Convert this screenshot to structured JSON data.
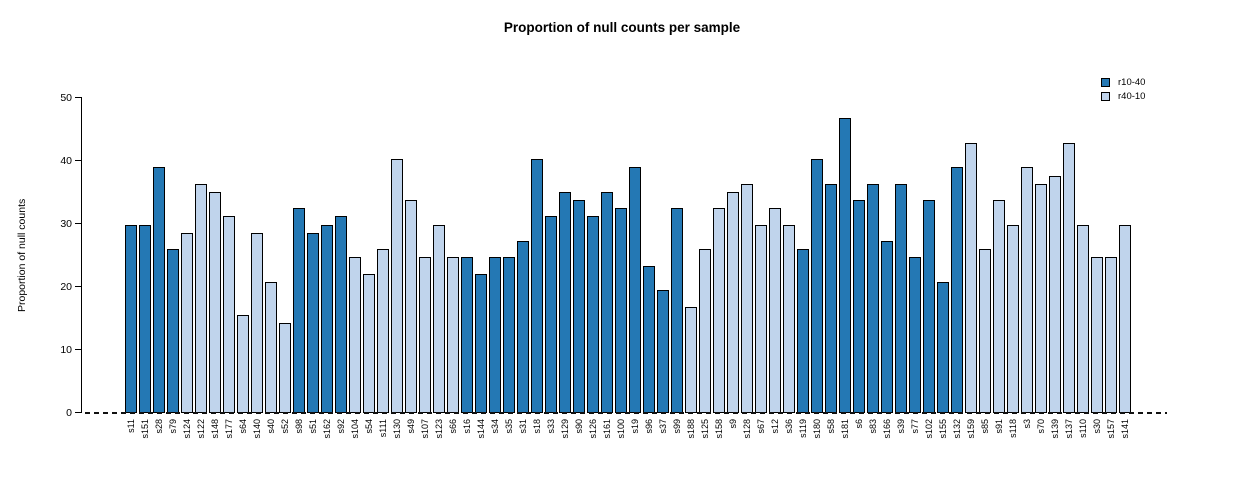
{
  "chart_data": {
    "type": "bar",
    "title": "Proportion of null counts per sample",
    "xlabel": "",
    "ylabel": "Proportion of null counts",
    "ylim": [
      0,
      50
    ],
    "y_ticks": [
      0,
      10,
      20,
      30,
      40,
      50
    ],
    "grid": false,
    "zero_line_style": "dashed",
    "legend_position": "top-right",
    "series": [
      {
        "name": "r10-40",
        "color": "#2478b4"
      },
      {
        "name": "r40-10",
        "color": "#c0d4ec"
      }
    ],
    "bar_border_color": "#000000",
    "bars": [
      {
        "label": "s11",
        "value": 29.9,
        "series": "r10-40"
      },
      {
        "label": "s151",
        "value": 29.9,
        "series": "r10-40"
      },
      {
        "label": "s28",
        "value": 39.0,
        "series": "r10-40"
      },
      {
        "label": "s79",
        "value": 26.0,
        "series": "r10-40"
      },
      {
        "label": "s124",
        "value": 28.6,
        "series": "r40-10"
      },
      {
        "label": "s122",
        "value": 36.4,
        "series": "r40-10"
      },
      {
        "label": "s148",
        "value": 35.1,
        "series": "r40-10"
      },
      {
        "label": "s177",
        "value": 31.2,
        "series": "r40-10"
      },
      {
        "label": "s64",
        "value": 15.6,
        "series": "r40-10"
      },
      {
        "label": "s140",
        "value": 28.6,
        "series": "r40-10"
      },
      {
        "label": "s40",
        "value": 20.8,
        "series": "r40-10"
      },
      {
        "label": "s52",
        "value": 14.3,
        "series": "r40-10"
      },
      {
        "label": "s98",
        "value": 32.5,
        "series": "r10-40"
      },
      {
        "label": "s51",
        "value": 28.6,
        "series": "r10-40"
      },
      {
        "label": "s162",
        "value": 29.9,
        "series": "r10-40"
      },
      {
        "label": "s92",
        "value": 31.2,
        "series": "r10-40"
      },
      {
        "label": "s104",
        "value": 24.7,
        "series": "r40-10"
      },
      {
        "label": "s54",
        "value": 22.1,
        "series": "r40-10"
      },
      {
        "label": "s111",
        "value": 26.0,
        "series": "r40-10"
      },
      {
        "label": "s130",
        "value": 40.3,
        "series": "r40-10"
      },
      {
        "label": "s49",
        "value": 33.8,
        "series": "r40-10"
      },
      {
        "label": "s107",
        "value": 24.7,
        "series": "r40-10"
      },
      {
        "label": "s123",
        "value": 29.9,
        "series": "r40-10"
      },
      {
        "label": "s66",
        "value": 24.7,
        "series": "r40-10"
      },
      {
        "label": "s16",
        "value": 24.7,
        "series": "r10-40"
      },
      {
        "label": "s144",
        "value": 22.1,
        "series": "r10-40"
      },
      {
        "label": "s34",
        "value": 24.7,
        "series": "r10-40"
      },
      {
        "label": "s35",
        "value": 24.7,
        "series": "r10-40"
      },
      {
        "label": "s31",
        "value": 27.3,
        "series": "r10-40"
      },
      {
        "label": "s18",
        "value": 40.3,
        "series": "r10-40"
      },
      {
        "label": "s33",
        "value": 31.2,
        "series": "r10-40"
      },
      {
        "label": "s129",
        "value": 35.1,
        "series": "r10-40"
      },
      {
        "label": "s90",
        "value": 33.8,
        "series": "r10-40"
      },
      {
        "label": "s126",
        "value": 31.2,
        "series": "r10-40"
      },
      {
        "label": "s161",
        "value": 35.1,
        "series": "r10-40"
      },
      {
        "label": "s100",
        "value": 32.5,
        "series": "r10-40"
      },
      {
        "label": "s19",
        "value": 39.0,
        "series": "r10-40"
      },
      {
        "label": "s96",
        "value": 23.4,
        "series": "r10-40"
      },
      {
        "label": "s37",
        "value": 19.5,
        "series": "r10-40"
      },
      {
        "label": "s99",
        "value": 32.5,
        "series": "r10-40"
      },
      {
        "label": "s188",
        "value": 16.9,
        "series": "r40-10"
      },
      {
        "label": "s125",
        "value": 26.0,
        "series": "r40-10"
      },
      {
        "label": "s158",
        "value": 32.5,
        "series": "r40-10"
      },
      {
        "label": "s9",
        "value": 35.1,
        "series": "r40-10"
      },
      {
        "label": "s128",
        "value": 36.4,
        "series": "r40-10"
      },
      {
        "label": "s67",
        "value": 29.9,
        "series": "r40-10"
      },
      {
        "label": "s12",
        "value": 32.5,
        "series": "r40-10"
      },
      {
        "label": "s36",
        "value": 29.9,
        "series": "r40-10"
      },
      {
        "label": "s119",
        "value": 26.0,
        "series": "r10-40"
      },
      {
        "label": "s180",
        "value": 40.3,
        "series": "r10-40"
      },
      {
        "label": "s58",
        "value": 36.4,
        "series": "r10-40"
      },
      {
        "label": "s181",
        "value": 46.8,
        "series": "r10-40"
      },
      {
        "label": "s6",
        "value": 33.8,
        "series": "r10-40"
      },
      {
        "label": "s83",
        "value": 36.4,
        "series": "r10-40"
      },
      {
        "label": "s166",
        "value": 27.3,
        "series": "r10-40"
      },
      {
        "label": "s39",
        "value": 36.4,
        "series": "r10-40"
      },
      {
        "label": "s77",
        "value": 24.7,
        "series": "r10-40"
      },
      {
        "label": "s102",
        "value": 33.8,
        "series": "r10-40"
      },
      {
        "label": "s155",
        "value": 20.8,
        "series": "r10-40"
      },
      {
        "label": "s132",
        "value": 39.0,
        "series": "r10-40"
      },
      {
        "label": "s159",
        "value": 42.9,
        "series": "r40-10"
      },
      {
        "label": "s85",
        "value": 26.0,
        "series": "r40-10"
      },
      {
        "label": "s91",
        "value": 33.8,
        "series": "r40-10"
      },
      {
        "label": "s118",
        "value": 29.9,
        "series": "r40-10"
      },
      {
        "label": "s3",
        "value": 39.0,
        "series": "r40-10"
      },
      {
        "label": "s70",
        "value": 36.4,
        "series": "r40-10"
      },
      {
        "label": "s139",
        "value": 37.7,
        "series": "r40-10"
      },
      {
        "label": "s137",
        "value": 42.9,
        "series": "r40-10"
      },
      {
        "label": "s110",
        "value": 29.9,
        "series": "r40-10"
      },
      {
        "label": "s30",
        "value": 24.7,
        "series": "r40-10"
      },
      {
        "label": "s157",
        "value": 24.7,
        "series": "r40-10"
      },
      {
        "label": "s141",
        "value": 29.9,
        "series": "r40-10"
      }
    ]
  }
}
